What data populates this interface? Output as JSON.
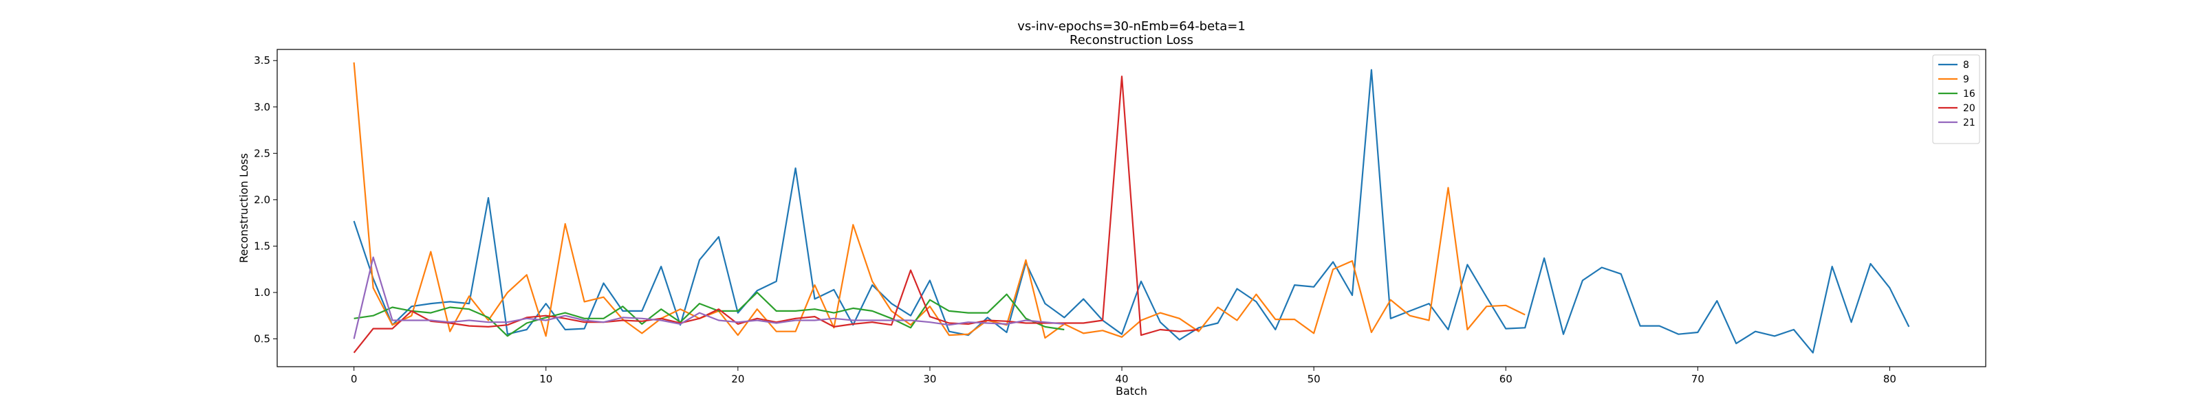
{
  "chart_data": {
    "type": "line",
    "title": "vs-inv-epochs=30-nEmb=64-beta=1",
    "subtitle": "Reconstruction Loss",
    "xlabel": "Batch",
    "ylabel": "Reconstruction Loss",
    "xlim": [
      -4,
      85
    ],
    "ylim": [
      0.2,
      3.62
    ],
    "xticks": [
      0,
      10,
      20,
      30,
      40,
      50,
      60,
      70,
      80
    ],
    "yticks": [
      0.5,
      1.0,
      1.5,
      2.0,
      2.5,
      3.0,
      3.5
    ],
    "grid": false,
    "legend_position": "top-right",
    "colors": {
      "axis": "#000000"
    },
    "series": [
      {
        "name": "8",
        "color": "#1f77b4",
        "values": [
          1.77,
          1.15,
          0.65,
          0.85,
          0.88,
          0.9,
          0.88,
          2.02,
          0.55,
          0.6,
          0.88,
          0.6,
          0.61,
          1.1,
          0.8,
          0.8,
          1.28,
          0.65,
          1.35,
          1.6,
          0.78,
          1.02,
          1.12,
          2.34,
          0.93,
          1.03,
          0.65,
          1.08,
          0.88,
          0.75,
          1.13,
          0.58,
          0.54,
          0.73,
          0.57,
          1.32,
          0.88,
          0.73,
          0.93,
          0.7,
          0.55,
          1.12,
          0.68,
          0.49,
          0.62,
          0.67,
          1.04,
          0.9,
          0.6,
          1.08,
          1.06,
          1.33,
          0.97,
          3.4,
          0.72,
          0.8,
          0.88,
          0.6,
          1.3,
          0.95,
          0.61,
          0.62,
          1.37,
          0.55,
          1.13,
          1.27,
          1.2,
          0.64,
          0.64,
          0.55,
          0.57,
          0.91,
          0.45,
          0.58,
          0.53,
          0.6,
          0.35,
          1.28,
          0.68,
          1.31,
          1.05,
          0.63
        ]
      },
      {
        "name": "9",
        "color": "#ff7f0e",
        "values": [
          3.48,
          1.05,
          0.65,
          0.75,
          1.44,
          0.58,
          0.96,
          0.7,
          1.0,
          1.19,
          0.53,
          1.74,
          0.9,
          0.95,
          0.71,
          0.56,
          0.72,
          0.82,
          0.72,
          0.8,
          0.54,
          0.82,
          0.58,
          0.58,
          1.08,
          0.62,
          1.73,
          1.12,
          0.8,
          0.65,
          0.85,
          0.54,
          0.55,
          0.7,
          0.65,
          1.35,
          0.51,
          0.66,
          0.56,
          0.59,
          0.52,
          0.7,
          0.78,
          0.72,
          0.58,
          0.84,
          0.7,
          0.98,
          0.71,
          0.71,
          0.56,
          1.25,
          1.34,
          0.57,
          0.92,
          0.75,
          0.7,
          2.13,
          0.6,
          0.85,
          0.86,
          0.76
        ]
      },
      {
        "name": "16",
        "color": "#2ca02c",
        "values": [
          0.72,
          0.75,
          0.84,
          0.8,
          0.78,
          0.84,
          0.82,
          0.73,
          0.53,
          0.67,
          0.73,
          0.78,
          0.72,
          0.72,
          0.85,
          0.66,
          0.82,
          0.68,
          0.88,
          0.8,
          0.8,
          1.0,
          0.8,
          0.8,
          0.82,
          0.78,
          0.83,
          0.8,
          0.72,
          0.62,
          0.92,
          0.8,
          0.78,
          0.78,
          0.98,
          0.72,
          0.63,
          0.6
        ]
      },
      {
        "name": "20",
        "color": "#d62728",
        "values": [
          0.35,
          0.61,
          0.61,
          0.8,
          0.69,
          0.67,
          0.64,
          0.63,
          0.65,
          0.73,
          0.75,
          0.72,
          0.68,
          0.68,
          0.7,
          0.69,
          0.72,
          0.67,
          0.72,
          0.82,
          0.66,
          0.72,
          0.68,
          0.72,
          0.74,
          0.63,
          0.66,
          0.68,
          0.65,
          1.24,
          0.74,
          0.67,
          0.66,
          0.7,
          0.69,
          0.67,
          0.67,
          0.67,
          0.67,
          0.7,
          3.33,
          0.54,
          0.6,
          0.58,
          0.6
        ]
      },
      {
        "name": "21",
        "color": "#9467bd",
        "values": [
          0.5,
          1.38,
          0.7,
          0.7,
          0.7,
          0.68,
          0.7,
          0.68,
          0.68,
          0.72,
          0.7,
          0.75,
          0.7,
          0.68,
          0.73,
          0.72,
          0.7,
          0.66,
          0.78,
          0.7,
          0.68,
          0.7,
          0.67,
          0.7,
          0.7,
          0.72,
          0.7,
          0.7,
          0.7,
          0.7,
          0.68,
          0.65,
          0.68,
          0.67,
          0.66,
          0.7,
          0.68,
          0.66
        ]
      }
    ]
  }
}
